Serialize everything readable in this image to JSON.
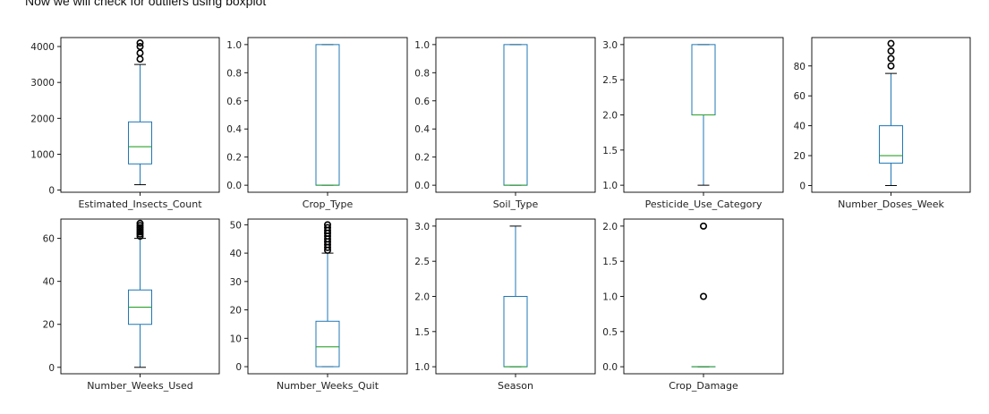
{
  "intro_text": "Now we will check for outliers using boxplot",
  "colors": {
    "box": "#1f77b4",
    "median": "#2ca02c",
    "flier": "#000000",
    "axis": "#000000"
  },
  "chart_data": [
    {
      "type": "box",
      "xlabel": "Estimated_Insects_Count",
      "ylim": [
        -60,
        4250
      ],
      "yticks": [
        0,
        1000,
        2000,
        3000,
        4000
      ],
      "tick_labels": [
        "0",
        "1000",
        "2000",
        "3000",
        "4000"
      ],
      "min": 150,
      "q1": 730,
      "median": 1210,
      "q3": 1900,
      "max": 3500,
      "fliers": [
        3650,
        3820,
        4000,
        4100
      ]
    },
    {
      "type": "box",
      "xlabel": "Crop_Type",
      "ylim": [
        -0.05,
        1.05
      ],
      "yticks": [
        0,
        0.2,
        0.4,
        0.6,
        0.8,
        1.0
      ],
      "tick_labels": [
        "0.0",
        "0.2",
        "0.4",
        "0.6",
        "0.8",
        "1.0"
      ],
      "min": 0,
      "q1": 0,
      "median": 0,
      "q3": 1,
      "max": 1,
      "fliers": []
    },
    {
      "type": "box",
      "xlabel": "Soil_Type",
      "ylim": [
        -0.05,
        1.05
      ],
      "yticks": [
        0,
        0.2,
        0.4,
        0.6,
        0.8,
        1.0
      ],
      "tick_labels": [
        "0.0",
        "0.2",
        "0.4",
        "0.6",
        "0.8",
        "1.0"
      ],
      "min": 0,
      "q1": 0,
      "median": 0,
      "q3": 1,
      "max": 1,
      "fliers": []
    },
    {
      "type": "box",
      "xlabel": "Pesticide_Use_Category",
      "ylim": [
        0.9,
        3.1
      ],
      "yticks": [
        1,
        1.5,
        2,
        2.5,
        3
      ],
      "tick_labels": [
        "1.0",
        "1.5",
        "2.0",
        "2.5",
        "3.0"
      ],
      "min": 1,
      "q1": 2,
      "median": 2,
      "q3": 3,
      "max": 3,
      "fliers": []
    },
    {
      "type": "box",
      "xlabel": "Number_Doses_Week",
      "ylim": [
        -4.5,
        99
      ],
      "yticks": [
        0,
        20,
        40,
        60,
        80
      ],
      "tick_labels": [
        "0",
        "20",
        "40",
        "60",
        "80"
      ],
      "min": 0,
      "q1": 15,
      "median": 20,
      "q3": 40,
      "max": 75,
      "fliers": [
        80,
        85,
        90,
        95
      ]
    },
    {
      "type": "box",
      "xlabel": "Number_Weeks_Used",
      "ylim": [
        -3,
        69
      ],
      "yticks": [
        0,
        20,
        40,
        60
      ],
      "tick_labels": [
        "0",
        "20",
        "40",
        "60"
      ],
      "min": 0,
      "q1": 20,
      "median": 28,
      "q3": 36,
      "max": 60,
      "fliers": [
        61,
        62,
        63,
        64,
        65,
        66,
        67
      ]
    },
    {
      "type": "box",
      "xlabel": "Number_Weeks_Quit",
      "ylim": [
        -2.5,
        52
      ],
      "yticks": [
        0,
        10,
        20,
        30,
        40,
        50
      ],
      "tick_labels": [
        "0",
        "10",
        "20",
        "30",
        "40",
        "50"
      ],
      "min": 0,
      "q1": 0,
      "median": 7,
      "q3": 16,
      "max": 40,
      "fliers": [
        41,
        42,
        43,
        44,
        45,
        46,
        47,
        48,
        49,
        50
      ]
    },
    {
      "type": "box",
      "xlabel": "Season",
      "ylim": [
        0.9,
        3.1
      ],
      "yticks": [
        1,
        1.5,
        2,
        2.5,
        3
      ],
      "tick_labels": [
        "1.0",
        "1.5",
        "2.0",
        "2.5",
        "3.0"
      ],
      "min": 1,
      "q1": 1,
      "median": 1,
      "q3": 2,
      "max": 3,
      "fliers": []
    },
    {
      "type": "box",
      "xlabel": "Crop_Damage",
      "ylim": [
        -0.1,
        2.1
      ],
      "yticks": [
        0,
        0.5,
        1,
        1.5,
        2
      ],
      "tick_labels": [
        "0.0",
        "0.5",
        "1.0",
        "1.5",
        "2.0"
      ],
      "min": 0,
      "q1": 0,
      "median": 0,
      "q3": 0,
      "max": 0,
      "fliers": [
        1,
        2
      ]
    }
  ]
}
